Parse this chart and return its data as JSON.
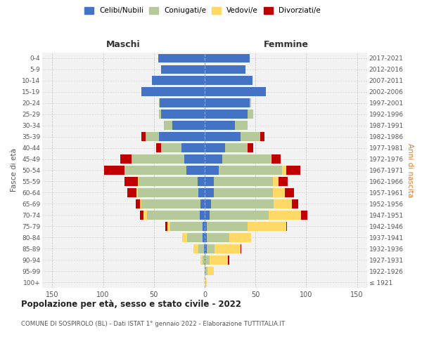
{
  "age_groups": [
    "100+",
    "95-99",
    "90-94",
    "85-89",
    "80-84",
    "75-79",
    "70-74",
    "65-69",
    "60-64",
    "55-59",
    "50-54",
    "45-49",
    "40-44",
    "35-39",
    "30-34",
    "25-29",
    "20-24",
    "15-19",
    "10-14",
    "5-9",
    "0-4"
  ],
  "birth_years": [
    "≤ 1921",
    "1922-1926",
    "1927-1931",
    "1932-1936",
    "1937-1941",
    "1942-1946",
    "1947-1951",
    "1952-1956",
    "1957-1961",
    "1962-1966",
    "1967-1971",
    "1972-1976",
    "1977-1981",
    "1982-1986",
    "1987-1991",
    "1992-1996",
    "1997-2001",
    "2002-2006",
    "2007-2011",
    "2012-2016",
    "2017-2021"
  ],
  "colors": {
    "celibi": "#4472C4",
    "coniugati": "#B5C99A",
    "vedovi": "#FFD966",
    "divorziati": "#C00000"
  },
  "males": {
    "celibi": [
      0,
      0,
      0,
      1,
      2,
      2,
      5,
      4,
      6,
      7,
      18,
      20,
      23,
      45,
      32,
      43,
      44,
      62,
      52,
      43,
      46
    ],
    "coniugati": [
      0,
      0,
      2,
      5,
      15,
      32,
      52,
      58,
      60,
      58,
      60,
      52,
      20,
      13,
      8,
      2,
      1,
      0,
      0,
      0,
      0
    ],
    "vedovi": [
      0,
      0,
      2,
      5,
      5,
      3,
      3,
      2,
      1,
      1,
      1,
      0,
      0,
      0,
      0,
      0,
      0,
      0,
      0,
      0,
      0
    ],
    "divorziati": [
      0,
      0,
      0,
      0,
      0,
      2,
      4,
      4,
      9,
      13,
      20,
      11,
      5,
      4,
      0,
      0,
      0,
      0,
      0,
      0,
      0
    ]
  },
  "females": {
    "celibi": [
      0,
      1,
      1,
      2,
      2,
      2,
      5,
      6,
      9,
      9,
      14,
      17,
      20,
      35,
      30,
      42,
      44,
      60,
      47,
      40,
      44
    ],
    "coniugati": [
      0,
      2,
      4,
      8,
      22,
      40,
      58,
      62,
      58,
      58,
      62,
      48,
      22,
      20,
      12,
      6,
      2,
      0,
      0,
      0,
      0
    ],
    "vedovi": [
      2,
      6,
      18,
      25,
      22,
      38,
      32,
      18,
      12,
      6,
      4,
      1,
      0,
      0,
      0,
      0,
      0,
      0,
      0,
      0,
      0
    ],
    "divorziati": [
      0,
      0,
      1,
      1,
      0,
      1,
      6,
      6,
      9,
      9,
      14,
      9,
      6,
      4,
      0,
      0,
      0,
      0,
      0,
      0,
      0
    ]
  },
  "title": "Popolazione per età, sesso e stato civile - 2022",
  "subtitle": "COMUNE DI SOSPIROLO (BL) - Dati ISTAT 1° gennaio 2022 - Elaborazione TUTTITALIA.IT",
  "xlabel_left": "Maschi",
  "xlabel_right": "Femmine",
  "ylabel_left": "Fasce di età",
  "ylabel_right": "Anni di nascita",
  "xlim": 160,
  "legend_labels": [
    "Celibi/Nubili",
    "Coniugati/e",
    "Vedovi/e",
    "Divorziati/e"
  ],
  "background_color": "#FFFFFF",
  "bar_height": 0.8
}
